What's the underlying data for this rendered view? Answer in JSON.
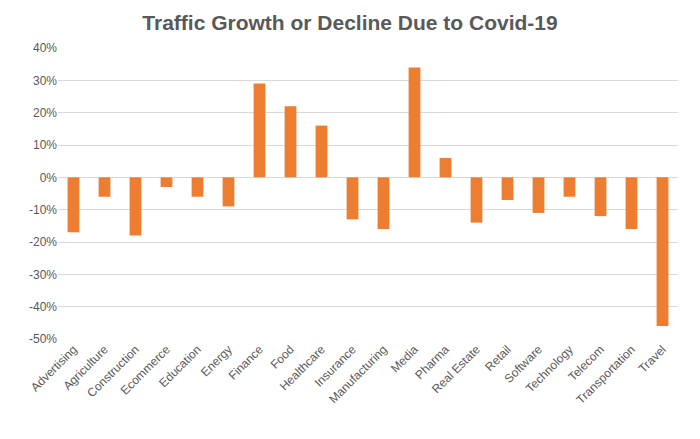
{
  "chart_data": {
    "type": "bar",
    "title": "Traffic Growth or Decline Due to Covid-19",
    "categories": [
      "Advertising",
      "Agriculture",
      "Construction",
      "Ecommerce",
      "Education",
      "Energy",
      "Finance",
      "Food",
      "Healthcare",
      "Insurance",
      "Manufacturing",
      "Media",
      "Pharma",
      "Real Estate",
      "Retail",
      "Software",
      "Technology",
      "Telecom",
      "Transportation",
      "Travel"
    ],
    "values": [
      -17,
      -6,
      -18,
      -3,
      -6,
      -9,
      29,
      22,
      16,
      -13,
      -16,
      34,
      6,
      -14,
      -7,
      -11,
      -6,
      -12,
      -16,
      -46
    ],
    "color": "#ed7d31",
    "ylim": [
      -50,
      40
    ],
    "yticks": [
      {
        "value": -50,
        "label": "-50%"
      },
      {
        "value": -40,
        "label": "-40%"
      },
      {
        "value": -30,
        "label": "-30%"
      },
      {
        "value": -20,
        "label": "-20%"
      },
      {
        "value": -10,
        "label": "-10%"
      },
      {
        "value": 0,
        "label": "0%"
      },
      {
        "value": 10,
        "label": "10%"
      },
      {
        "value": 20,
        "label": "20%"
      },
      {
        "value": 30,
        "label": "30%"
      },
      {
        "value": 40,
        "label": "40%"
      }
    ],
    "grid": true
  }
}
